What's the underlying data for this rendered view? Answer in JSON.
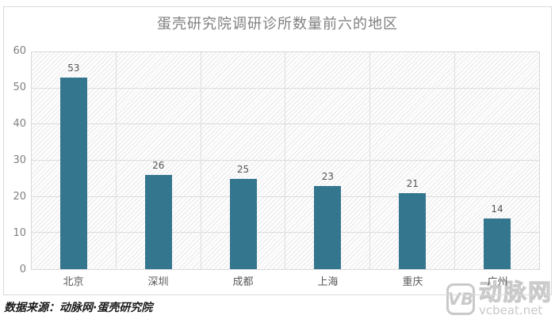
{
  "chart_data": {
    "type": "bar",
    "title": "蛋壳研究院调研诊所数量前六的地区",
    "categories": [
      "北京",
      "深圳",
      "成都",
      "上海",
      "重庆",
      "广州"
    ],
    "values": [
      53,
      26,
      25,
      23,
      21,
      14
    ],
    "xlabel": "",
    "ylabel": "",
    "ylim": [
      0,
      60
    ],
    "yticks": [
      0,
      10,
      20,
      30,
      40,
      50,
      60
    ],
    "grid": true,
    "legend": "none",
    "bar_color": "#35768f"
  },
  "footer": {
    "source_text": "数据来源：动脉网·蛋壳研究院"
  },
  "watermark": {
    "logo_text": "VB",
    "brand_text": "动脉网",
    "url_text": "vcbeat.net"
  },
  "colors": {
    "bar": "#35768f",
    "title": "#7f7f7f",
    "axis_tick": "#808080",
    "value_label": "#555555",
    "gridline": "#dcdcdc",
    "border": "#d9d9d9",
    "watermark": "#c9c9c9"
  }
}
